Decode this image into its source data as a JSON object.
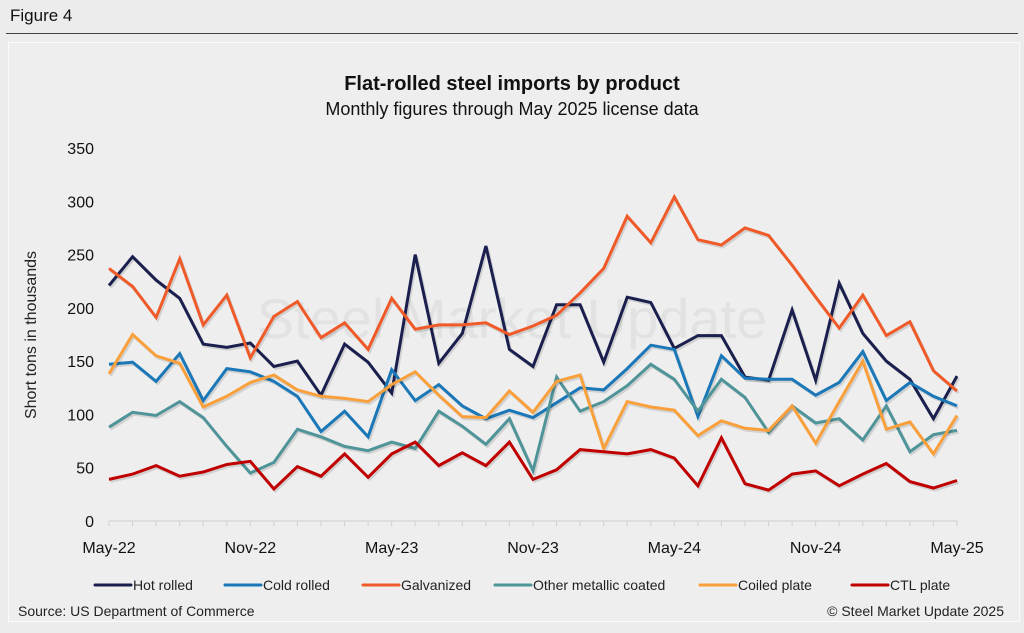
{
  "figure_label": "Figure 4",
  "source": "Source: US Department of Commerce",
  "copyright": "© Steel Market Update 2025",
  "watermark": "Steel Market Update",
  "chart_data": {
    "type": "line",
    "title": "Flat-rolled steel imports by product",
    "subtitle": "Monthly figures through May 2025 license data",
    "xlabel": "",
    "ylabel": "Short tons in thousands",
    "ylim": [
      0,
      350
    ],
    "yticks": [
      0,
      50,
      100,
      150,
      200,
      250,
      300,
      350
    ],
    "x": [
      "May-22",
      "Jun-22",
      "Jul-22",
      "Aug-22",
      "Sep-22",
      "Oct-22",
      "Nov-22",
      "Dec-22",
      "Jan-23",
      "Feb-23",
      "Mar-23",
      "Apr-23",
      "May-23",
      "Jun-23",
      "Jul-23",
      "Aug-23",
      "Sep-23",
      "Oct-23",
      "Nov-23",
      "Dec-23",
      "Jan-24",
      "Feb-24",
      "Mar-24",
      "Apr-24",
      "May-24",
      "Jun-24",
      "Jul-24",
      "Aug-24",
      "Sep-24",
      "Oct-24",
      "Nov-24",
      "Dec-24",
      "Jan-25",
      "Feb-25",
      "Mar-25",
      "Apr-25",
      "May-25"
    ],
    "xtick_labels": [
      "May-22",
      "Nov-22",
      "May-23",
      "Nov-23",
      "May-24",
      "Nov-24",
      "May-25"
    ],
    "grid": false,
    "legend_position": "bottom",
    "series": [
      {
        "name": "Hot rolled",
        "color": "#1a1f4e",
        "values": [
          221,
          248,
          226,
          209,
          166,
          163,
          167,
          145,
          150,
          118,
          166,
          149,
          120,
          250,
          148,
          176,
          258,
          161,
          145,
          203,
          203,
          149,
          210,
          205,
          162,
          174,
          174,
          135,
          132,
          198,
          132,
          223,
          176,
          150,
          133,
          96,
          136
        ]
      },
      {
        "name": "Cold rolled",
        "color": "#1a78b8",
        "values": [
          147,
          149,
          131,
          157,
          113,
          143,
          140,
          131,
          117,
          84,
          103,
          79,
          142,
          113,
          128,
          108,
          96,
          104,
          97,
          111,
          125,
          123,
          143,
          165,
          161,
          98,
          155,
          134,
          133,
          133,
          118,
          130,
          159,
          113,
          130,
          117,
          108
        ]
      },
      {
        "name": "Galvanized",
        "color": "#f05a28",
        "values": [
          237,
          220,
          191,
          246,
          184,
          212,
          153,
          192,
          206,
          172,
          186,
          161,
          209,
          180,
          184,
          184,
          186,
          175,
          183,
          193,
          214,
          237,
          286,
          261,
          304,
          264,
          259,
          275,
          268,
          240,
          210,
          181,
          212,
          174,
          187,
          141,
          122
        ]
      },
      {
        "name": "Other metallic coated",
        "color": "#4f9499",
        "values": [
          88,
          102,
          99,
          112,
          97,
          70,
          45,
          55,
          86,
          79,
          70,
          66,
          74,
          68,
          103,
          89,
          72,
          96,
          47,
          135,
          103,
          112,
          127,
          147,
          133,
          103,
          133,
          116,
          83,
          108,
          92,
          96,
          76,
          108,
          65,
          81,
          85
        ]
      },
      {
        "name": "Coiled plate",
        "color": "#f9a03c",
        "values": [
          138,
          175,
          155,
          148,
          107,
          117,
          130,
          137,
          123,
          117,
          115,
          112,
          128,
          140,
          118,
          98,
          97,
          122,
          102,
          131,
          137,
          68,
          112,
          107,
          104,
          80,
          94,
          87,
          85,
          108,
          73,
          112,
          150,
          86,
          93,
          63,
          99
        ]
      },
      {
        "name": "CTL plate",
        "color": "#c00000",
        "values": [
          39,
          44,
          52,
          42,
          46,
          53,
          56,
          30,
          51,
          42,
          63,
          41,
          63,
          74,
          52,
          64,
          52,
          74,
          39,
          48,
          67,
          65,
          63,
          67,
          59,
          33,
          78,
          35,
          29,
          44,
          47,
          33,
          44,
          54,
          37,
          31,
          38
        ]
      }
    ]
  }
}
